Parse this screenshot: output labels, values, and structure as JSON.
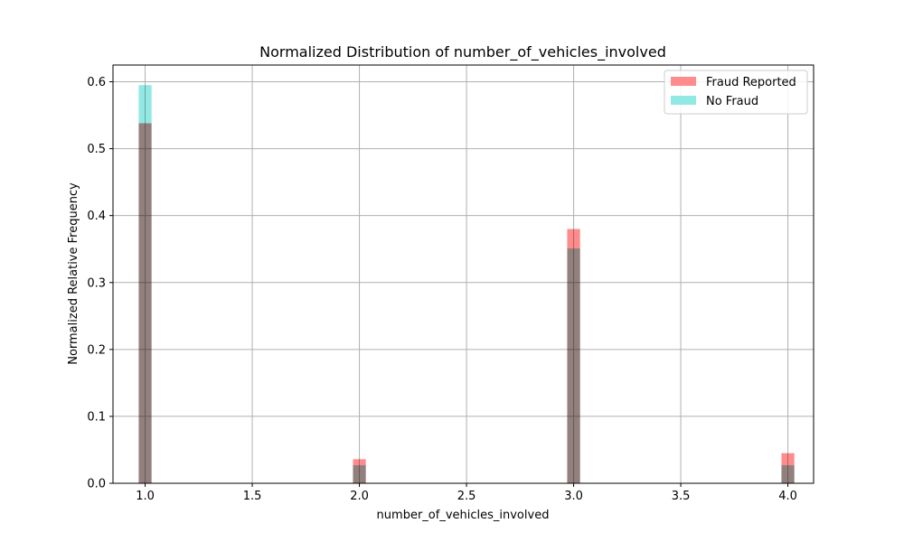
{
  "chart_data": {
    "type": "bar",
    "title": "Normalized Distribution of number_of_vehicles_involved",
    "xlabel": "number_of_vehicles_involved",
    "ylabel": "Normalized Relative Frequency",
    "xlim": [
      0.85,
      4.12
    ],
    "ylim": [
      0,
      0.625
    ],
    "xticks": [
      1.0,
      1.5,
      2.0,
      2.5,
      3.0,
      3.5,
      4.0
    ],
    "xtick_labels": [
      "1.0",
      "1.5",
      "2.0",
      "2.5",
      "3.0",
      "3.5",
      "4.0"
    ],
    "yticks": [
      0.0,
      0.1,
      0.2,
      0.3,
      0.4,
      0.5,
      0.6
    ],
    "ytick_labels": [
      "0.0",
      "0.1",
      "0.2",
      "0.3",
      "0.4",
      "0.5",
      "0.6"
    ],
    "grid": true,
    "legend_position": "top-right",
    "bin_width": 0.06,
    "series": [
      {
        "name": "Fraud Reported",
        "color": "#ff7f7f",
        "opacity": 0.9,
        "points": [
          {
            "x": 1.0,
            "y": 0.538
          },
          {
            "x": 2.0,
            "y": 0.036
          },
          {
            "x": 3.0,
            "y": 0.38
          },
          {
            "x": 4.0,
            "y": 0.045
          }
        ]
      },
      {
        "name": "No Fraud",
        "color": "#7fe5df",
        "opacity": 0.85,
        "points": [
          {
            "x": 1.0,
            "y": 0.595
          },
          {
            "x": 2.0,
            "y": 0.027
          },
          {
            "x": 3.0,
            "y": 0.351
          },
          {
            "x": 4.0,
            "y": 0.027
          }
        ]
      }
    ]
  }
}
